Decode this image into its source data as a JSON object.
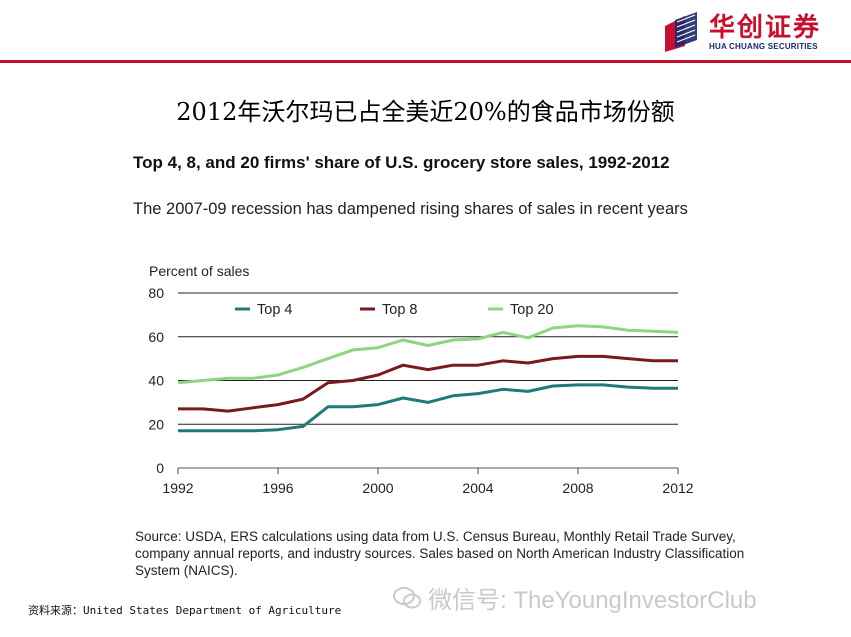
{
  "brand": {
    "name_cn": "华创证券",
    "name_en": "HUA CHUANG SECURITIES",
    "colors": {
      "accent": "#c8102e",
      "navy": "#1a2a6c"
    }
  },
  "slide_title": "2012年沃尔玛已占全美近20%的食品市场份额",
  "chart_data": {
    "type": "line",
    "title": "Top 4, 8, and 20 firms' share of U.S. grocery store sales, 1992-2012",
    "subtitle": "The 2007-09 recession has dampened rising shares of sales in recent years",
    "ylabel": "Percent of sales",
    "xlabel": "",
    "xlim": [
      1992,
      2012
    ],
    "ylim": [
      0,
      80
    ],
    "xticks": [
      1992,
      1996,
      2000,
      2004,
      2008,
      2012
    ],
    "yticks": [
      0,
      20,
      40,
      60,
      80
    ],
    "x": [
      1992,
      1993,
      1994,
      1995,
      1996,
      1997,
      1998,
      1999,
      2000,
      2001,
      2002,
      2003,
      2004,
      2005,
      2006,
      2007,
      2008,
      2009,
      2010,
      2011,
      2012
    ],
    "series": [
      {
        "name": "Top 4",
        "color": "#1f7a7a",
        "values": [
          17,
          17,
          17,
          17,
          17.5,
          19,
          28,
          28,
          29,
          32,
          30,
          33,
          34,
          36,
          35,
          37.5,
          38,
          38,
          37,
          36.5,
          36.5
        ]
      },
      {
        "name": "Top 8",
        "color": "#7a1a1a",
        "values": [
          27,
          27,
          26,
          27.5,
          29,
          31.5,
          39,
          40,
          42.5,
          47,
          45,
          47,
          47,
          49,
          48,
          50,
          51,
          51,
          50,
          49,
          49
        ]
      },
      {
        "name": "Top 20",
        "color": "#8fd47f",
        "values": [
          39,
          40,
          41,
          41,
          42.5,
          46,
          50,
          54,
          55,
          58.5,
          56,
          58.5,
          59,
          62,
          59.5,
          64,
          65,
          64.5,
          63,
          62.5,
          62
        ]
      }
    ],
    "legend_position": "top"
  },
  "source_text": "Source: USDA, ERS calculations using data from U.S. Census Bureau, Monthly Retail Trade Survey, company annual reports, and industry sources. Sales based on North American Industry Classification System (NAICS).",
  "footer_note": "资料来源：United States Department of Agriculture",
  "watermark": "微信号: TheYoungInvestorClub"
}
